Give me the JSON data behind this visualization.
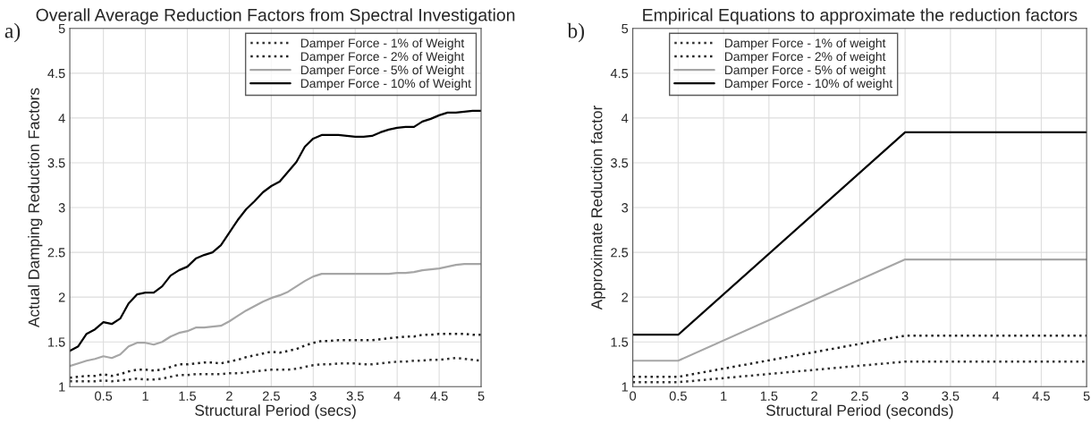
{
  "chart_data": [
    {
      "type": "line",
      "title": "Overall Average Reduction Factors from Spectral Investigation",
      "xlabel": "Structural Period (secs)",
      "ylabel": "Actual Damping Reduction Factors",
      "annotations": [
        "a)"
      ],
      "x": [
        0.1,
        0.2,
        0.3,
        0.4,
        0.5,
        0.6,
        0.7,
        0.8,
        0.9,
        1.0,
        1.1,
        1.2,
        1.3,
        1.4,
        1.5,
        1.6,
        1.7,
        1.8,
        1.9,
        2.0,
        2.1,
        2.2,
        2.3,
        2.4,
        2.5,
        2.6,
        2.7,
        2.8,
        2.9,
        3.0,
        3.1,
        3.2,
        3.3,
        3.4,
        3.5,
        3.6,
        3.7,
        3.8,
        3.9,
        4.0,
        4.1,
        4.2,
        4.3,
        4.4,
        4.5,
        4.6,
        4.7,
        4.8,
        4.9,
        5.0
      ],
      "series": [
        {
          "name": "Damper Force - 1% of Weight",
          "color": "#333333",
          "line_style": "dotted",
          "values": [
            1.06,
            1.06,
            1.06,
            1.06,
            1.07,
            1.06,
            1.07,
            1.08,
            1.09,
            1.08,
            1.08,
            1.09,
            1.11,
            1.13,
            1.13,
            1.14,
            1.14,
            1.14,
            1.14,
            1.15,
            1.15,
            1.16,
            1.17,
            1.18,
            1.19,
            1.19,
            1.19,
            1.2,
            1.22,
            1.24,
            1.25,
            1.25,
            1.26,
            1.26,
            1.26,
            1.25,
            1.25,
            1.26,
            1.27,
            1.28,
            1.28,
            1.29,
            1.29,
            1.3,
            1.3,
            1.31,
            1.32,
            1.31,
            1.3,
            1.29
          ]
        },
        {
          "name": "Damper Force - 2% of Weight",
          "color": "#222222",
          "line_style": "dotted",
          "values": [
            1.1,
            1.11,
            1.12,
            1.12,
            1.14,
            1.12,
            1.14,
            1.17,
            1.19,
            1.19,
            1.18,
            1.19,
            1.22,
            1.25,
            1.25,
            1.26,
            1.27,
            1.27,
            1.26,
            1.28,
            1.3,
            1.33,
            1.35,
            1.37,
            1.39,
            1.38,
            1.4,
            1.42,
            1.46,
            1.49,
            1.51,
            1.51,
            1.52,
            1.52,
            1.52,
            1.52,
            1.52,
            1.53,
            1.54,
            1.55,
            1.56,
            1.56,
            1.58,
            1.58,
            1.59,
            1.59,
            1.59,
            1.59,
            1.58,
            1.58
          ]
        },
        {
          "name": "Damper Force - 5% of Weight",
          "color": "#a6a6a6",
          "line_style": "solid",
          "values": [
            1.23,
            1.26,
            1.29,
            1.31,
            1.34,
            1.32,
            1.36,
            1.45,
            1.49,
            1.49,
            1.47,
            1.5,
            1.56,
            1.6,
            1.62,
            1.66,
            1.66,
            1.67,
            1.68,
            1.73,
            1.79,
            1.85,
            1.9,
            1.95,
            1.99,
            2.02,
            2.06,
            2.12,
            2.18,
            2.23,
            2.26,
            2.26,
            2.26,
            2.26,
            2.26,
            2.26,
            2.26,
            2.26,
            2.26,
            2.27,
            2.27,
            2.28,
            2.3,
            2.31,
            2.32,
            2.34,
            2.36,
            2.37,
            2.37,
            2.37
          ]
        },
        {
          "name": "Damper Force - 10% of Weight",
          "color": "#000000",
          "line_style": "solid",
          "values": [
            1.4,
            1.45,
            1.59,
            1.64,
            1.72,
            1.7,
            1.76,
            1.93,
            2.03,
            2.05,
            2.05,
            2.12,
            2.24,
            2.3,
            2.34,
            2.43,
            2.47,
            2.5,
            2.58,
            2.72,
            2.86,
            2.98,
            3.07,
            3.17,
            3.24,
            3.29,
            3.4,
            3.51,
            3.68,
            3.77,
            3.81,
            3.81,
            3.81,
            3.8,
            3.79,
            3.79,
            3.8,
            3.84,
            3.87,
            3.89,
            3.9,
            3.9,
            3.96,
            3.99,
            4.03,
            4.06,
            4.06,
            4.07,
            4.08,
            4.08
          ]
        }
      ],
      "xlim": [
        0.1,
        5
      ],
      "xticks": [
        0.5,
        1,
        1.5,
        2,
        2.5,
        3,
        3.5,
        4,
        4.5,
        5
      ],
      "ylim": [
        1,
        5
      ],
      "yticks": [
        1,
        1.5,
        2,
        2.5,
        3,
        3.5,
        4,
        4.5,
        5
      ],
      "grid": true,
      "legend": "top right"
    },
    {
      "type": "line",
      "title": "Empirical Equations to approximate the reduction factors",
      "xlabel": "Structural Period (seconds)",
      "ylabel": "Approximate Reduction factor",
      "annotations": [
        "b)"
      ],
      "x": [
        0,
        0.5,
        3,
        5
      ],
      "series": [
        {
          "name": "Damper Force - 1% of weight",
          "color": "#333333",
          "line_style": "dotted",
          "values": [
            1.05,
            1.05,
            1.28,
            1.28
          ]
        },
        {
          "name": "Damper Force - 2% of weight",
          "color": "#222222",
          "line_style": "dotted",
          "values": [
            1.11,
            1.11,
            1.57,
            1.57
          ]
        },
        {
          "name": "Damper Force - 5% of weight",
          "color": "#a6a6a6",
          "line_style": "solid",
          "values": [
            1.29,
            1.29,
            2.42,
            2.42
          ]
        },
        {
          "name": "Damper Force - 10% of weight",
          "color": "#000000",
          "line_style": "solid",
          "values": [
            1.58,
            1.58,
            3.84,
            3.84
          ]
        }
      ],
      "xlim": [
        0,
        5
      ],
      "xticks": [
        0,
        0.5,
        1,
        1.5,
        2,
        2.5,
        3,
        3.5,
        4,
        4.5,
        5
      ],
      "ylim": [
        1,
        5
      ],
      "yticks": [
        1,
        1.5,
        2,
        2.5,
        3,
        3.5,
        4,
        4.5,
        5
      ],
      "grid": true,
      "legend": "top left"
    }
  ]
}
